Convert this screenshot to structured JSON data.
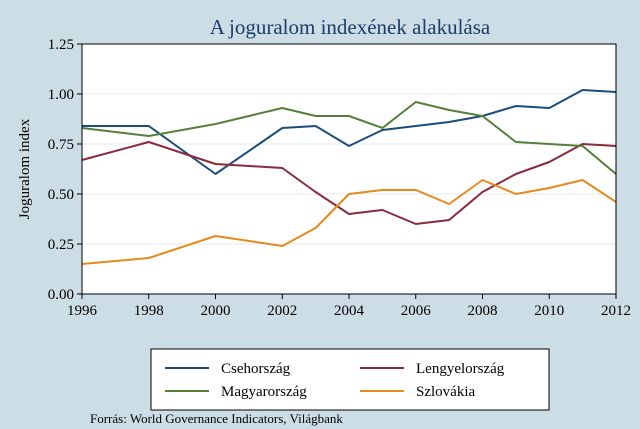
{
  "chart_data": {
    "type": "line",
    "title": "A joguralom indexének alakulása",
    "ylabel": "Joguralom index",
    "xlabel": "",
    "xlim": [
      1996,
      2012
    ],
    "ylim": [
      0,
      1.25
    ],
    "x_ticks": [
      1996,
      1998,
      2000,
      2002,
      2004,
      2006,
      2008,
      2010,
      2012
    ],
    "y_ticks": [
      0,
      0.25,
      0.5,
      0.75,
      1.0,
      1.25
    ],
    "y_tick_labels": [
      "0.00",
      "0.25",
      "0.50",
      "0.75",
      "1.00",
      "1.25"
    ],
    "grid": "horizontal",
    "legend_position": "bottom",
    "x": [
      1996,
      1998,
      2000,
      2002,
      2003,
      2004,
      2005,
      2006,
      2007,
      2008,
      2009,
      2010,
      2011,
      2012
    ],
    "series": [
      {
        "name": "Csehország",
        "color": "#1a4d7c",
        "values": [
          0.84,
          0.84,
          0.6,
          0.83,
          0.84,
          0.74,
          0.82,
          0.84,
          0.86,
          0.89,
          0.94,
          0.93,
          1.02,
          1.01
        ]
      },
      {
        "name": "Lengyelország",
        "color": "#8c2a3c",
        "values": [
          0.67,
          0.76,
          0.65,
          0.63,
          0.51,
          0.4,
          0.42,
          0.35,
          0.37,
          0.51,
          0.6,
          0.66,
          0.75,
          0.74
        ]
      },
      {
        "name": "Magyarország",
        "color": "#54803a",
        "values": [
          0.83,
          0.79,
          0.85,
          0.93,
          0.89,
          0.89,
          0.83,
          0.96,
          0.92,
          0.89,
          0.76,
          0.75,
          0.74,
          0.6
        ]
      },
      {
        "name": "Szlovákia",
        "color": "#e8891c",
        "values": [
          0.15,
          0.18,
          0.29,
          0.24,
          0.33,
          0.5,
          0.52,
          0.52,
          0.45,
          0.57,
          0.5,
          0.53,
          0.57,
          0.46
        ]
      }
    ],
    "source": "Forrás: World Governance Indicators, Világbank"
  }
}
